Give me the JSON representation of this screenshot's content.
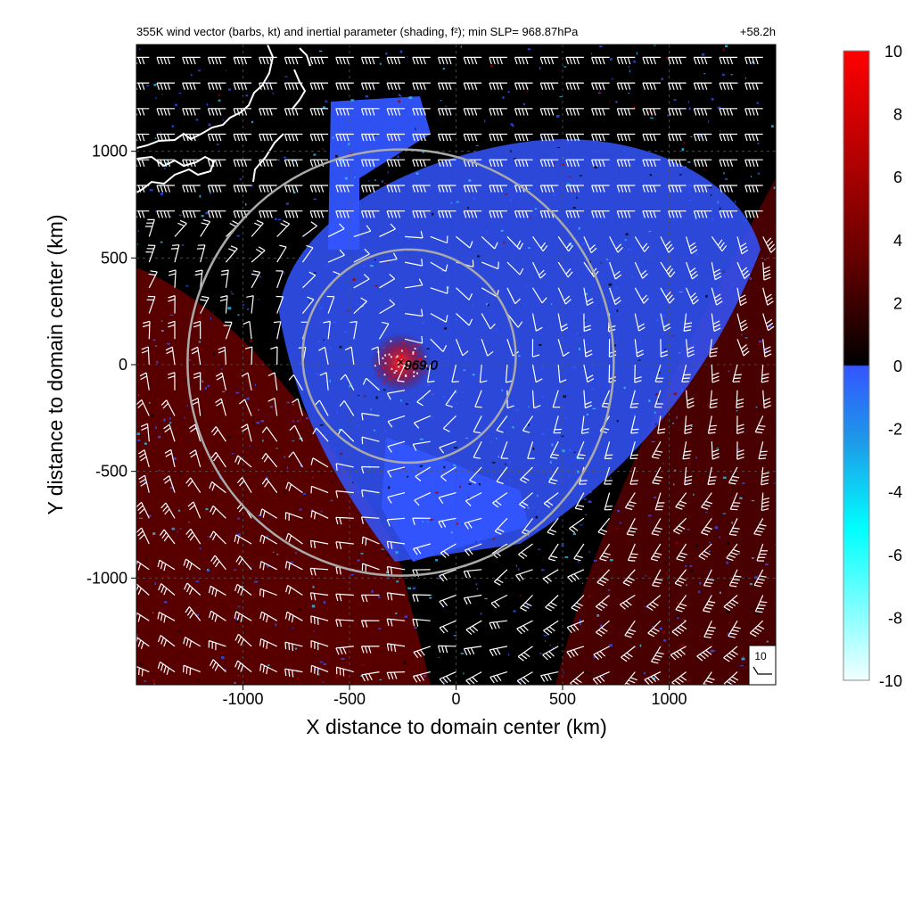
{
  "chart_data": {
    "type": "heatmap",
    "title": "355K wind vector (barbs, kt) and inertial parameter (shading, f²); min SLP= 968.87hPa",
    "forecast_hour": "+58.2h",
    "xlabel": "X distance to domain center (km)",
    "ylabel": "Y distance to domain center (km)",
    "xlim": [
      -1500,
      1500
    ],
    "ylim": [
      -1500,
      1500
    ],
    "x_ticks": [
      -1000,
      -500,
      0,
      500,
      1000
    ],
    "y_ticks": [
      -1000,
      -500,
      0,
      500,
      1000
    ],
    "x_tick_labels": [
      "-1000",
      "-500",
      "0",
      "500",
      "1000"
    ],
    "y_tick_labels": [
      "-1000",
      "-500",
      "0",
      "500",
      "1000"
    ],
    "grid": "dashed",
    "colorbar": {
      "range": [
        -10,
        10
      ],
      "ticks": [
        10,
        8,
        6,
        4,
        2,
        0,
        -2,
        -4,
        -6,
        -8,
        -10
      ],
      "tick_labels": [
        "10",
        "8",
        "6",
        "4",
        "2",
        "0",
        "-2",
        "-4",
        "-6",
        "-8",
        "-10"
      ],
      "colors_positive": [
        "#000000",
        "#3a0000",
        "#7a0000",
        "#c00000",
        "#ff0000"
      ],
      "colors_negative": [
        "#3355ff",
        "#1d8fe0",
        "#00ccee",
        "#00ffff",
        "#9ffcff",
        "#f0ffff"
      ]
    },
    "center": {
      "x": -260,
      "y": 10,
      "label": "969.0"
    },
    "rings": [
      {
        "center_x": -220,
        "center_y": 40,
        "radius_km": 500
      },
      {
        "center_x": -260,
        "center_y": 10,
        "radius_km": 1000
      }
    ],
    "barb_legend": {
      "label": "10",
      "speed_kt": 10
    },
    "palette": {
      "background": "#000000",
      "blue": "#3355ff",
      "red": "#a00000",
      "bright_red": "#ff0000",
      "cyan": "#33ccff",
      "ring": "#aaaaaa",
      "barb": "#ffffff"
    }
  }
}
